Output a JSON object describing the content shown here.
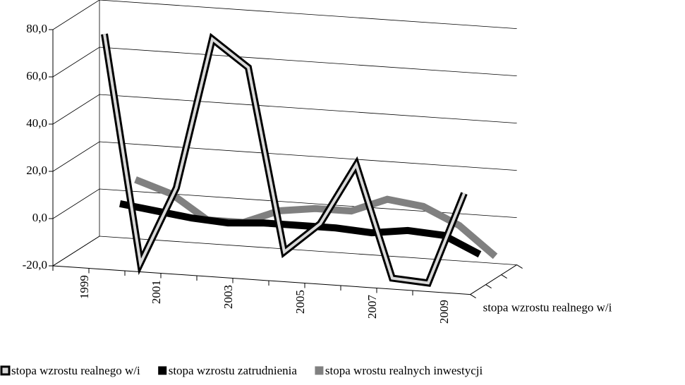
{
  "chart_data": {
    "type": "line3d",
    "categories": [
      "1999",
      null,
      "2001",
      null,
      "2003",
      null,
      "2005",
      null,
      "2007",
      null,
      "2009"
    ],
    "series": [
      {
        "name": "stopa wzrostu realnego w/i",
        "color": "#d9d9d9",
        "values": [
          75,
          -21,
          12,
          76,
          65,
          -12,
          1,
          27,
          -20,
          -21,
          18
        ]
      },
      {
        "name": "stopa wzrostu zatrudnienia",
        "color": "#000000",
        "values": [
          -1,
          -3,
          -5,
          -6,
          -5,
          -5,
          -5,
          -6,
          -4,
          -5,
          -12
        ]
      },
      {
        "name": "stopa wrostu realnych inwestycji",
        "color": "#808080",
        "values": [
          5,
          0,
          -10,
          -10,
          -4,
          -2,
          -2,
          4,
          2,
          -5,
          -17
        ]
      }
    ],
    "ylim": [
      -20,
      80
    ],
    "yticks": [
      {
        "value": -20,
        "label": "-20,0"
      },
      {
        "value": 0,
        "label": "0,0"
      },
      {
        "value": 20,
        "label": "20,0"
      },
      {
        "value": 40,
        "label": "40,0"
      },
      {
        "value": 60,
        "label": "60,0"
      },
      {
        "value": 80,
        "label": "80,0"
      }
    ],
    "grid": true
  }
}
